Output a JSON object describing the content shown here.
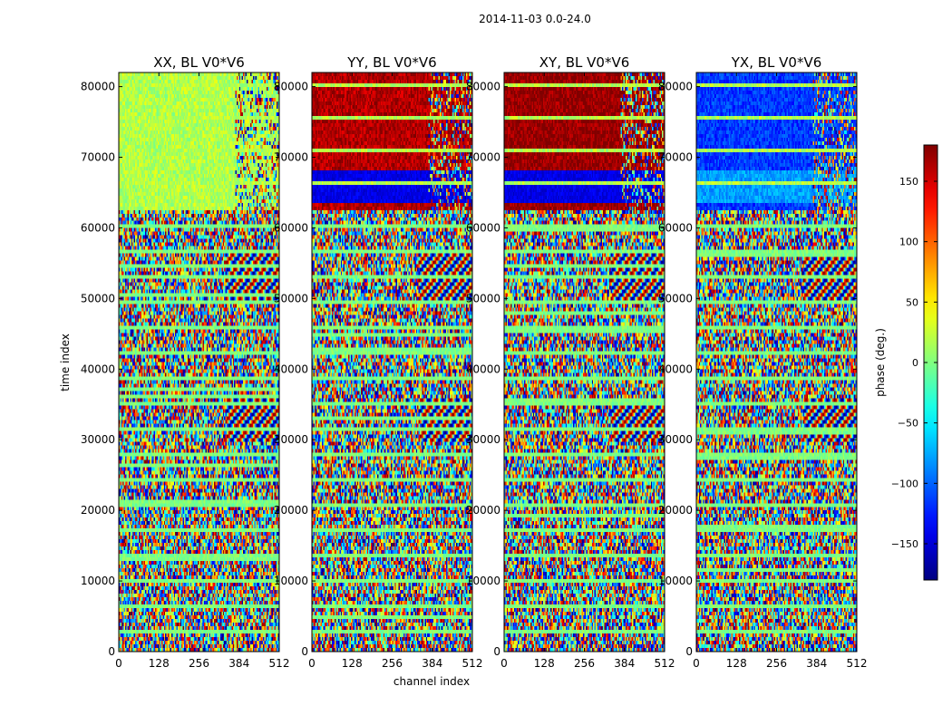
{
  "chart_data": {
    "type": "heatmap",
    "suptitle": "2014-11-03 0.0-24.0",
    "panels": [
      {
        "title": "XX, BL V0*V6",
        "tint": 0.55
      },
      {
        "title": "YY, BL V0*V6",
        "tint": 0.95
      },
      {
        "title": "XY, BL V0*V6",
        "tint": 0.98
      },
      {
        "title": "YX, BL V0*V6",
        "tint": 0.18
      }
    ],
    "xlabel": "channel index",
    "ylabel": "time index",
    "xlim": [
      0,
      512
    ],
    "ylim": [
      0,
      82000
    ],
    "xticks": [
      0,
      128,
      256,
      384,
      512
    ],
    "xtick_labels": [
      "0",
      "128",
      "256",
      "384",
      "512"
    ],
    "yticks": [
      0,
      10000,
      20000,
      30000,
      40000,
      50000,
      60000,
      70000,
      80000
    ],
    "ytick_labels": [
      "0",
      "10000",
      "20000",
      "30000",
      "40000",
      "50000",
      "60000",
      "70000",
      "80000"
    ],
    "colorbar": {
      "label": "phase (deg.)",
      "vmin": -180,
      "vmax": 180,
      "ticks": [
        -150,
        -100,
        -50,
        0,
        50,
        100,
        150
      ],
      "tick_labels": [
        "−150",
        "−100",
        "−50",
        "0",
        "50",
        "100",
        "150"
      ],
      "colormap": "jet"
    }
  }
}
